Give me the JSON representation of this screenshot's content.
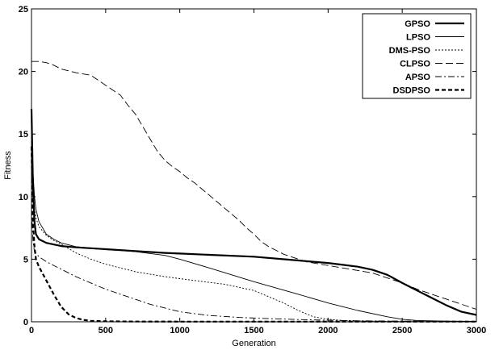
{
  "chart_data": {
    "type": "line",
    "title": "",
    "xlabel": "Generation",
    "ylabel": "Fitness",
    "xlim": [
      0,
      3000
    ],
    "ylim": [
      0,
      25
    ],
    "xticks": [
      0,
      500,
      1000,
      1500,
      2000,
      2500,
      3000
    ],
    "yticks": [
      0,
      5,
      10,
      15,
      20,
      25
    ],
    "xtick_labels": [
      "0",
      "500",
      "1000",
      "1500",
      "2000",
      "2500",
      "3000"
    ],
    "ytick_labels": [
      "0",
      "5",
      "10",
      "15",
      "20",
      "25"
    ],
    "grid": false,
    "legend_position": "top-right",
    "series": [
      {
        "name": "GPSO",
        "color": "#000000",
        "style": "solid-thick",
        "x": [
          0,
          10,
          20,
          30,
          50,
          100,
          200,
          300,
          500,
          700,
          900,
          1000,
          1200,
          1500,
          1800,
          2000,
          2100,
          2200,
          2300,
          2400,
          2500,
          2600,
          2700,
          2800,
          2900,
          3000
        ],
        "y": [
          17,
          11,
          8,
          7,
          6.6,
          6.3,
          6.05,
          5.95,
          5.8,
          5.65,
          5.5,
          5.45,
          5.35,
          5.2,
          4.9,
          4.7,
          4.55,
          4.4,
          4.15,
          3.75,
          3.1,
          2.5,
          1.9,
          1.3,
          0.8,
          0.55
        ]
      },
      {
        "name": "LPSO",
        "color": "#000000",
        "style": "solid-thin",
        "x": [
          0,
          10,
          20,
          30,
          50,
          100,
          150,
          200,
          300,
          500,
          700,
          900,
          1000,
          1200,
          1500,
          1800,
          2000,
          2200,
          2400,
          2500,
          2600,
          2800,
          3000
        ],
        "y": [
          16,
          12,
          10,
          9,
          8,
          7,
          6.6,
          6.3,
          6.0,
          5.8,
          5.6,
          5.3,
          5.0,
          4.3,
          3.2,
          2.2,
          1.5,
          0.9,
          0.4,
          0.2,
          0.1,
          0.05,
          0.03
        ]
      },
      {
        "name": "DMS-PSO",
        "color": "#000000",
        "style": "dotted",
        "x": [
          0,
          10,
          20,
          30,
          50,
          100,
          150,
          200,
          300,
          400,
          500,
          700,
          900,
          1100,
          1300,
          1500,
          1700,
          1800,
          1900,
          2000,
          2100,
          2300,
          2500,
          3000
        ],
        "y": [
          15,
          11,
          9,
          8.3,
          7.6,
          6.9,
          6.5,
          6.2,
          5.5,
          5.0,
          4.6,
          4.0,
          3.6,
          3.3,
          3.0,
          2.5,
          1.5,
          0.9,
          0.4,
          0.2,
          0.1,
          0.05,
          0.02,
          0.01
        ]
      },
      {
        "name": "CLPSO",
        "color": "#000000",
        "style": "dash",
        "x": [
          0,
          50,
          100,
          150,
          200,
          300,
          400,
          500,
          600,
          650,
          700,
          750,
          800,
          850,
          900,
          950,
          1000,
          1050,
          1100,
          1150,
          1200,
          1250,
          1300,
          1350,
          1400,
          1450,
          1500,
          1550,
          1600,
          1650,
          1700,
          1750,
          1800,
          1850,
          1900,
          2000,
          2100,
          2200,
          2300,
          2400,
          2500,
          2600,
          2700,
          2800,
          2900,
          3000
        ],
        "y": [
          20.8,
          20.8,
          20.7,
          20.5,
          20.2,
          19.9,
          19.7,
          18.9,
          18.1,
          17.3,
          16.6,
          15.6,
          14.6,
          13.6,
          12.9,
          12.4,
          12.0,
          11.5,
          11.1,
          10.6,
          10.1,
          9.6,
          9.1,
          8.6,
          8.1,
          7.5,
          7.0,
          6.4,
          6.0,
          5.7,
          5.4,
          5.2,
          5.0,
          4.8,
          4.7,
          4.5,
          4.3,
          4.1,
          3.9,
          3.5,
          3.1,
          2.6,
          2.2,
          1.8,
          1.4,
          1.0
        ]
      },
      {
        "name": "APSO",
        "color": "#000000",
        "style": "dash-dot",
        "x": [
          0,
          10,
          20,
          50,
          100,
          200,
          300,
          400,
          500,
          600,
          700,
          800,
          900,
          1000,
          1200,
          1400,
          1600,
          1800,
          2000,
          2200,
          2500,
          3000
        ],
        "y": [
          9,
          6.5,
          5.6,
          5.2,
          4.8,
          4.2,
          3.6,
          3.1,
          2.6,
          2.2,
          1.8,
          1.4,
          1.1,
          0.8,
          0.5,
          0.35,
          0.25,
          0.18,
          0.12,
          0.08,
          0.05,
          0.03
        ]
      },
      {
        "name": "DSDPSO",
        "color": "#000000",
        "style": "dash-thick",
        "x": [
          0,
          10,
          20,
          30,
          50,
          100,
          150,
          200,
          250,
          300,
          350,
          400,
          500,
          700,
          1000,
          2000,
          3000
        ],
        "y": [
          14,
          8,
          6,
          5,
          4.4,
          3.3,
          2.2,
          1.2,
          0.6,
          0.3,
          0.15,
          0.08,
          0.04,
          0.02,
          0.01,
          0.01,
          0.01
        ]
      }
    ]
  }
}
